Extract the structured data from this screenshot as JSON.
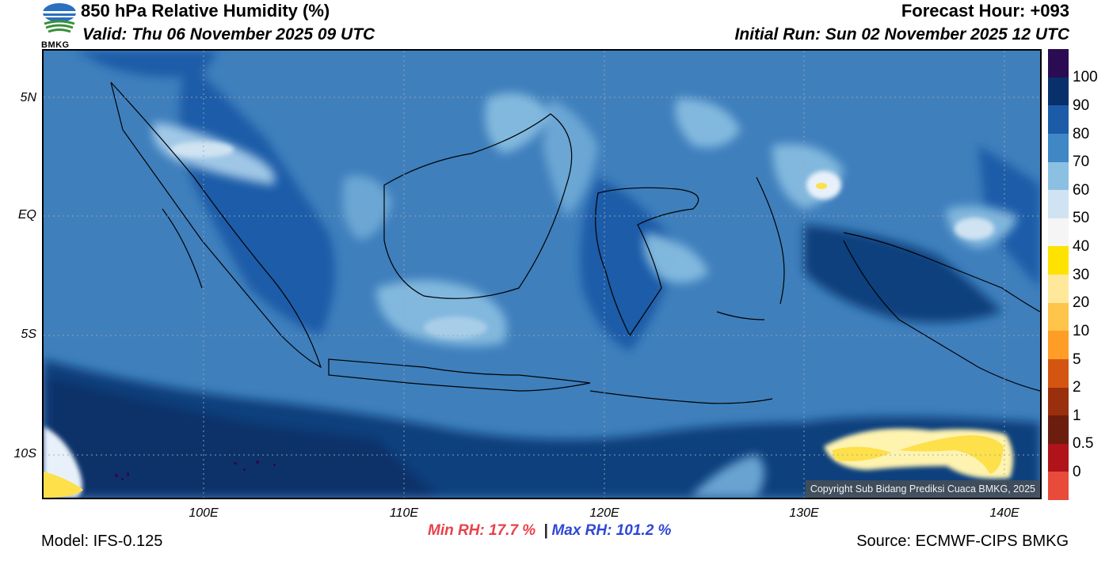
{
  "header": {
    "title": "850 hPa Relative Humidity (%)",
    "valid": "Valid: Thu 06 November 2025 09 UTC",
    "forecast_hour": "Forecast Hour: +093",
    "initial_run": "Initial Run: Sun 02 November 2025 12 UTC"
  },
  "logo": {
    "text": "BMKG",
    "icon": "bmkg-logo-icon"
  },
  "map": {
    "lat_labels": [
      "5N",
      "EQ",
      "5S",
      "10S"
    ],
    "lon_labels": [
      "100E",
      "110E",
      "120E",
      "130E",
      "140E"
    ],
    "copyright": "Copyright Sub Bidang Prediksi Cuaca BMKG, 2025",
    "colors": {
      "ocean_base": "#3f7fbc",
      "deep": "#08306b",
      "dark": "#1c5ba8",
      "mid": "#4a8fc9",
      "light": "#86bce0",
      "pale": "#cfe3f2",
      "dry_yellow": "#fde04a"
    }
  },
  "colorbar": {
    "labels": [
      "100",
      "90",
      "80",
      "70",
      "60",
      "50",
      "40",
      "30",
      "20",
      "10",
      "5",
      "2",
      "1",
      "0.5",
      "0"
    ],
    "colors": [
      "#2b0c52",
      "#08306b",
      "#1c5ba8",
      "#3f88c5",
      "#8cc0e3",
      "#d0e3f2",
      "#f5f5f5",
      "#ffe300",
      "#ffe89a",
      "#ffc44a",
      "#ff9d26",
      "#d45512",
      "#9a2f0d",
      "#6b1d0e",
      "#b0131a",
      "#e84b3a"
    ]
  },
  "stats": {
    "min_rh": "Min RH:  17.7 %",
    "separator": "|",
    "max_rh": "Max RH: 101.2 %"
  },
  "footer": {
    "model": "Model: IFS-0.125",
    "source": "Source: ECMWF-CIPS BMKG"
  }
}
